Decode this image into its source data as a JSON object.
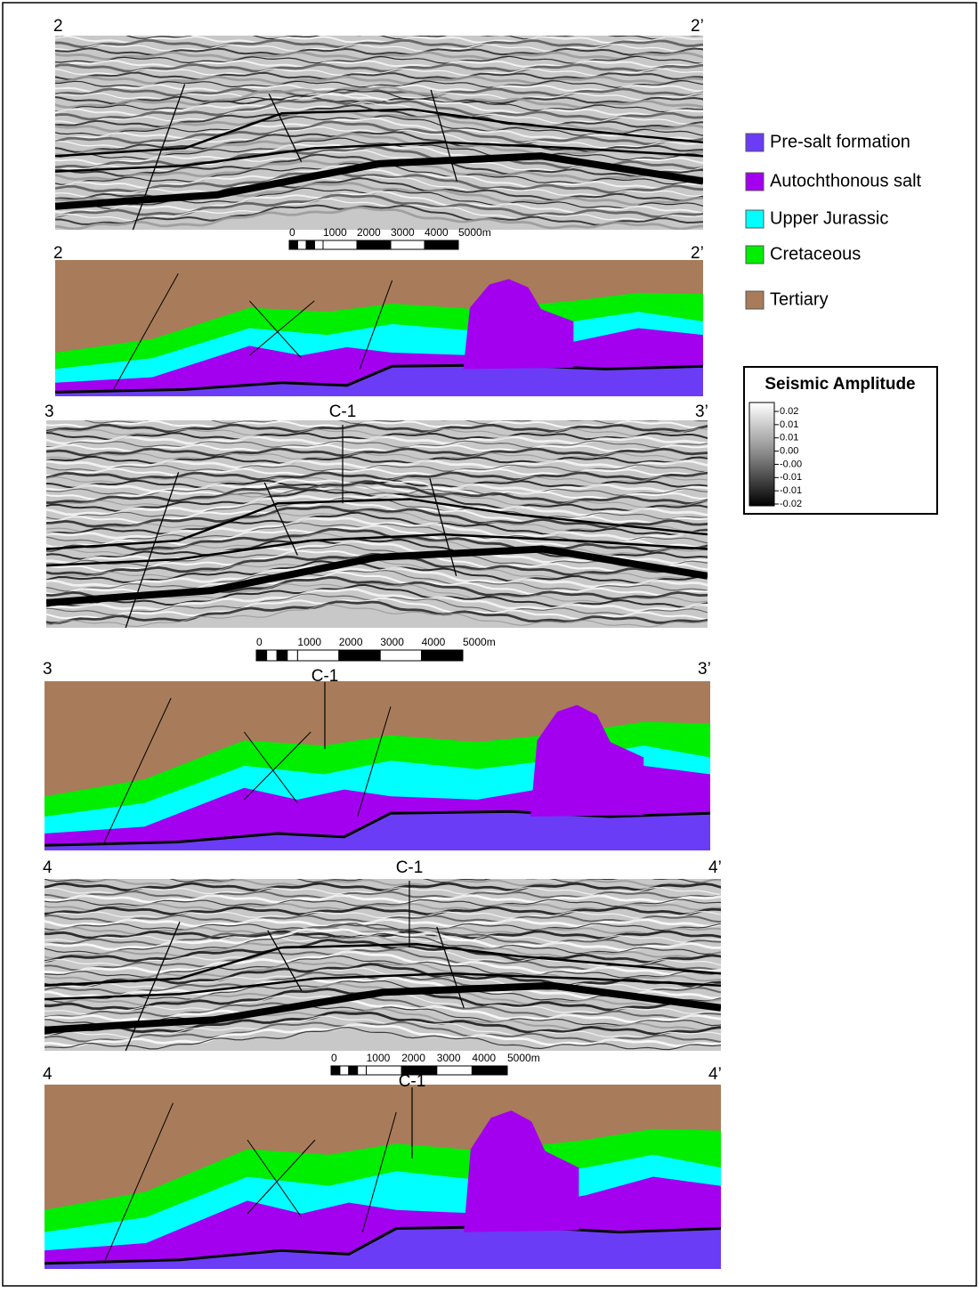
{
  "sections": [
    {
      "left_label": "2",
      "right_label": "2’"
    },
    {
      "left_label": "2",
      "right_label": "2’"
    },
    {
      "left_label": "3",
      "right_label": "3’",
      "well": "C-1"
    },
    {
      "left_label": "3",
      "right_label": "3’",
      "well": "C-1"
    },
    {
      "left_label": "4",
      "right_label": "4’",
      "well": "C-1"
    },
    {
      "left_label": "4",
      "right_label": "4’",
      "well": "C-1"
    }
  ],
  "scale_bars": [
    {
      "labels": [
        "0",
        "1000",
        "2000",
        "3000",
        "4000",
        "5000m"
      ]
    },
    {
      "labels": [
        "0",
        "1000",
        "2000",
        "3000",
        "4000",
        "5000m"
      ]
    },
    {
      "labels": [
        "0",
        "1000",
        "2000",
        "3000",
        "4000",
        "5000m"
      ]
    }
  ],
  "legend": {
    "items": [
      {
        "label": "Pre-salt formation",
        "color": "#6a3cf5"
      },
      {
        "label": "Autochthonous salt",
        "color": "#a300f0"
      },
      {
        "label": "Upper Jurassic",
        "color": "#00ffff"
      },
      {
        "label": "Cretaceous",
        "color": "#00ee00"
      },
      {
        "label": "Tertiary",
        "color": "#a87c5a"
      }
    ]
  },
  "colorbar": {
    "title": "Seismic Amplitude",
    "ticks": [
      "0.02",
      "0.01",
      "0.01",
      "0.00",
      "-0.00",
      "-0.01",
      "-0.01",
      "-0.02"
    ]
  }
}
